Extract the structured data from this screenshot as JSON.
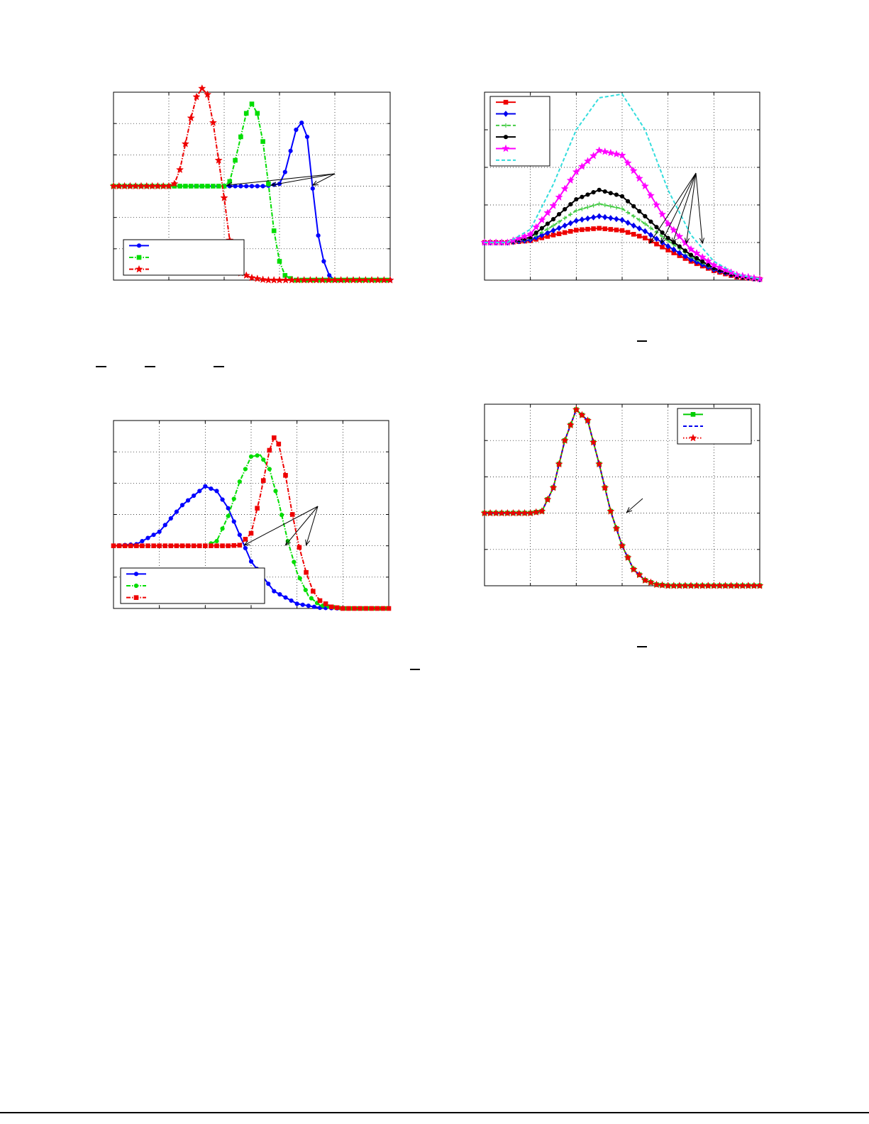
{
  "chart_data": [
    {
      "id": "chart-a",
      "type": "line",
      "xlim": [
        0,
        5
      ],
      "ylim": [
        -2,
        2
      ],
      "grid": true,
      "legend": {
        "placement": "bottom-left",
        "entries": 3
      },
      "arrow_targets": [
        [
          2.05,
          0.02
        ],
        [
          2.85,
          0.02
        ],
        [
          3.6,
          0.02
        ]
      ],
      "series": [
        {
          "color": "#0000ff",
          "marker": "dot",
          "dash": "solid",
          "x": [
            0,
            0.25,
            0.5,
            0.75,
            1,
            1.25,
            1.5,
            1.75,
            2,
            2.25,
            2.5,
            2.75,
            3,
            3.1,
            3.2,
            3.3,
            3.4,
            3.5,
            3.6,
            3.7,
            3.8,
            3.9,
            4,
            4.25,
            4.5,
            4.75,
            5
          ],
          "y": [
            0,
            0,
            0,
            0,
            0,
            0,
            0,
            0,
            0,
            0,
            0,
            0,
            0.05,
            0.3,
            0.75,
            1.2,
            1.35,
            1.05,
            -0.05,
            -1.05,
            -1.6,
            -1.9,
            -2,
            -2,
            -2,
            -2,
            -2
          ]
        },
        {
          "color": "#00dd00",
          "marker": "square",
          "dash": "dashdot",
          "x": [
            0,
            0.25,
            0.5,
            0.75,
            1,
            1.25,
            1.5,
            1.75,
            2,
            2.1,
            2.2,
            2.3,
            2.4,
            2.5,
            2.6,
            2.7,
            2.8,
            2.9,
            3.0,
            3.1,
            3.25,
            3.5,
            4,
            4.5,
            5
          ],
          "y": [
            0,
            0,
            0,
            0,
            0,
            0,
            0,
            0,
            0,
            0.1,
            0.55,
            1.05,
            1.55,
            1.75,
            1.55,
            0.95,
            0.05,
            -0.95,
            -1.6,
            -1.9,
            -2,
            -2,
            -2,
            -2,
            -2
          ]
        },
        {
          "color": "#ee0000",
          "marker": "star",
          "dash": "dashdot",
          "x": [
            0,
            0.25,
            0.5,
            0.75,
            1,
            1.1,
            1.2,
            1.3,
            1.4,
            1.5,
            1.6,
            1.7,
            1.8,
            1.9,
            2,
            2.1,
            2.2,
            2.3,
            2.5,
            2.75,
            3,
            3.5,
            4,
            4.5,
            5
          ],
          "y": [
            0,
            0,
            0,
            0,
            0,
            0.05,
            0.35,
            0.9,
            1.45,
            1.9,
            2.08,
            1.95,
            1.35,
            0.55,
            -0.25,
            -1.15,
            -1.65,
            -1.85,
            -1.95,
            -2,
            -2,
            -2,
            -2,
            -2,
            -2
          ]
        }
      ]
    },
    {
      "id": "chart-b",
      "type": "line",
      "xlim": [
        0,
        6
      ],
      "ylim": [
        -1,
        4
      ],
      "grid": true,
      "legend": {
        "placement": "top-left",
        "entries": 6
      },
      "arrow_targets": [
        [
          3.6,
          -0.02
        ],
        [
          3.85,
          -0.02
        ],
        [
          4.1,
          -0.02
        ],
        [
          4.4,
          -0.02
        ],
        [
          4.75,
          -0.02
        ]
      ],
      "series": [
        {
          "color": "#ee0000",
          "marker": "square",
          "dash": "solid",
          "x": [
            0,
            0.5,
            1,
            1.5,
            2,
            2.5,
            3,
            3.5,
            4,
            4.5,
            5,
            5.5,
            6
          ],
          "y": [
            0,
            0,
            0.05,
            0.2,
            0.33,
            0.38,
            0.32,
            0.12,
            -0.2,
            -0.5,
            -0.75,
            -0.92,
            -0.98
          ]
        },
        {
          "color": "#0000ee",
          "marker": "diamond",
          "dash": "solid",
          "x": [
            0,
            0.5,
            1,
            1.5,
            2,
            2.5,
            3,
            3.5,
            4,
            4.5,
            5,
            5.5,
            6
          ],
          "y": [
            0,
            0,
            0.07,
            0.32,
            0.58,
            0.7,
            0.6,
            0.3,
            -0.1,
            -0.45,
            -0.72,
            -0.9,
            -0.98
          ]
        },
        {
          "color": "#44cc44",
          "marker": "plus",
          "dash": "dash",
          "x": [
            0,
            0.5,
            1,
            1.5,
            2,
            2.5,
            3,
            3.5,
            4,
            4.5,
            5,
            5.5,
            6
          ],
          "y": [
            0,
            0,
            0.1,
            0.45,
            0.85,
            1.03,
            0.9,
            0.5,
            0.05,
            -0.38,
            -0.7,
            -0.9,
            -0.98
          ]
        },
        {
          "color": "#000000",
          "marker": "dot",
          "dash": "solid",
          "x": [
            0,
            0.5,
            1,
            1.5,
            2,
            2.5,
            3,
            3.5,
            4,
            4.5,
            5,
            5.5,
            6
          ],
          "y": [
            0,
            0,
            0.14,
            0.62,
            1.15,
            1.4,
            1.23,
            0.7,
            0.12,
            -0.33,
            -0.68,
            -0.9,
            -0.98
          ]
        },
        {
          "color": "#ff00ff",
          "marker": "star",
          "dash": "solid",
          "x": [
            0,
            0.5,
            1,
            1.5,
            2,
            2.5,
            3,
            3.5,
            4,
            4.5,
            5,
            5.5,
            6
          ],
          "y": [
            0,
            0,
            0.22,
            0.98,
            1.88,
            2.45,
            2.32,
            1.5,
            0.5,
            -0.18,
            -0.6,
            -0.86,
            -0.97
          ]
        },
        {
          "color": "#33dddd",
          "marker": "none",
          "dash": "dash",
          "x": [
            0,
            0.5,
            1,
            1.5,
            2,
            2.5,
            3,
            3.5,
            4,
            4.5,
            5,
            5.5,
            6
          ],
          "y": [
            0,
            0,
            0.35,
            1.55,
            3.0,
            3.85,
            3.95,
            3.0,
            1.4,
            0.2,
            -0.5,
            -0.85,
            -0.97
          ]
        }
      ]
    },
    {
      "id": "chart-c",
      "type": "line",
      "xlim": [
        0,
        6
      ],
      "ylim": [
        -2,
        4
      ],
      "grid": true,
      "legend": {
        "placement": "bottom-left",
        "entries": 3
      },
      "arrow_targets": [
        [
          2.85,
          0.02
        ],
        [
          3.75,
          0.02
        ],
        [
          4.2,
          0.02
        ]
      ],
      "series": [
        {
          "color": "#0000ff",
          "marker": "dot",
          "dash": "solid",
          "x": [
            0,
            0.5,
            1,
            1.5,
            2,
            2.25,
            2.5,
            2.75,
            3,
            3.5,
            4,
            4.5,
            5,
            5.5,
            6
          ],
          "y": [
            0,
            0.05,
            0.45,
            1.3,
            1.9,
            1.75,
            1.2,
            0.35,
            -0.5,
            -1.45,
            -1.85,
            -1.98,
            -2,
            -2,
            -2
          ]
        },
        {
          "color": "#00dd00",
          "marker": "dot",
          "dash": "dashdot",
          "x": [
            0,
            0.5,
            1,
            1.5,
            2,
            2.25,
            2.5,
            2.75,
            3,
            3.2,
            3.4,
            3.6,
            3.8,
            4,
            4.25,
            4.5,
            5,
            5.5,
            6
          ],
          "y": [
            0,
            0,
            0,
            0,
            0,
            0.15,
            0.95,
            2.05,
            2.85,
            2.9,
            2.45,
            1.4,
            0.15,
            -0.85,
            -1.6,
            -1.9,
            -2,
            -2,
            -2
          ]
        },
        {
          "color": "#ee0000",
          "marker": "square",
          "dash": "dashdot",
          "x": [
            0,
            0.5,
            1,
            1.5,
            2,
            2.5,
            2.75,
            3,
            3.2,
            3.4,
            3.5,
            3.6,
            3.75,
            3.9,
            4.05,
            4.2,
            4.35,
            4.5,
            4.75,
            5,
            5.5,
            6
          ],
          "y": [
            0,
            0,
            0,
            0,
            0,
            0,
            0.02,
            0.4,
            1.6,
            3.05,
            3.45,
            3.25,
            2.25,
            1.0,
            -0.05,
            -0.85,
            -1.45,
            -1.75,
            -1.95,
            -2,
            -2,
            -2
          ]
        }
      ]
    },
    {
      "id": "chart-d",
      "type": "line",
      "xlim": [
        0,
        6
      ],
      "ylim": [
        -2,
        3
      ],
      "grid": true,
      "legend": {
        "placement": "top-right",
        "entries": 3
      },
      "arrow_targets": [
        [
          3.1,
          0.02
        ]
      ],
      "series": [
        {
          "color": "#00cc00",
          "marker": "square",
          "dash": "solid",
          "x": [
            0,
            0.5,
            1,
            1.25,
            1.5,
            1.75,
            2,
            2.25,
            2.5,
            2.75,
            3,
            3.25,
            3.5,
            3.75,
            4,
            4.5,
            5,
            5.5,
            6
          ],
          "y": [
            0,
            0,
            0,
            0.05,
            0.7,
            2.0,
            2.85,
            2.55,
            1.35,
            0.05,
            -0.9,
            -1.55,
            -1.85,
            -1.97,
            -2,
            -2,
            -2,
            -2,
            -2
          ]
        },
        {
          "color": "#0000ee",
          "marker": "none",
          "dash": "dash",
          "x": [
            0,
            0.5,
            1,
            1.25,
            1.5,
            1.75,
            2,
            2.25,
            2.5,
            2.75,
            3,
            3.25,
            3.5,
            3.75,
            4,
            4.5,
            5,
            5.5,
            6
          ],
          "y": [
            0,
            0,
            0,
            0.05,
            0.7,
            2.0,
            2.85,
            2.55,
            1.35,
            0.05,
            -0.9,
            -1.55,
            -1.85,
            -1.97,
            -2,
            -2,
            -2,
            -2,
            -2
          ]
        },
        {
          "color": "#ee0000",
          "marker": "star",
          "dash": "dot",
          "x": [
            0,
            0.5,
            1,
            1.25,
            1.5,
            1.75,
            2,
            2.25,
            2.5,
            2.75,
            3,
            3.25,
            3.5,
            3.75,
            4,
            4.5,
            5,
            5.5,
            6
          ],
          "y": [
            0,
            0,
            0,
            0.05,
            0.7,
            2.0,
            2.85,
            2.55,
            1.35,
            0.05,
            -0.9,
            -1.55,
            -1.85,
            -1.97,
            -2,
            -2,
            -2,
            -2,
            -2
          ]
        }
      ]
    }
  ]
}
